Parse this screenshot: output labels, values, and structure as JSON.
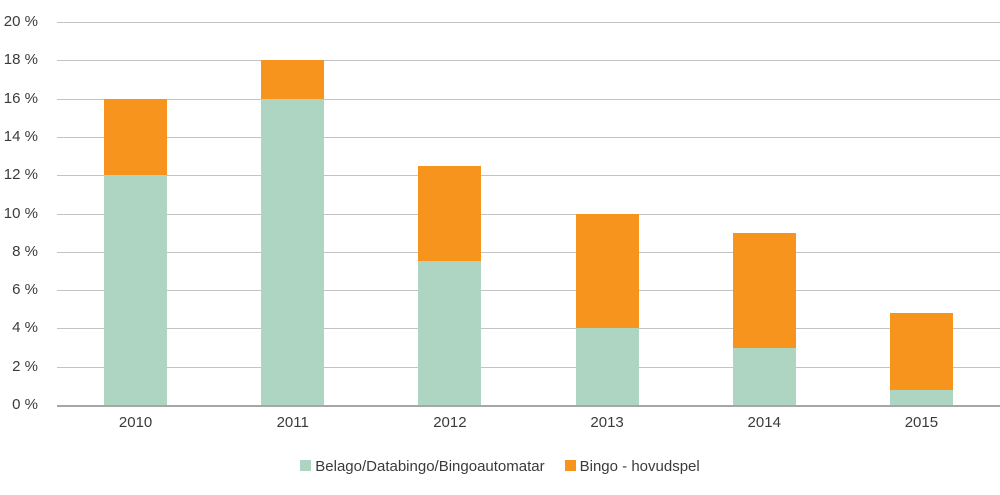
{
  "chart_data": {
    "type": "bar",
    "stacked": true,
    "categories": [
      "2010",
      "2011",
      "2012",
      "2013",
      "2014",
      "2015"
    ],
    "series": [
      {
        "name": "Belago/Databingo/Bingoautomatar",
        "color": "#add5c2",
        "values": [
          12,
          16,
          7.5,
          4,
          3,
          0.8
        ]
      },
      {
        "name": "Bingo - hovudspel",
        "color": "#f7941d",
        "values": [
          4,
          2,
          5,
          6,
          6,
          4
        ]
      }
    ],
    "totals": [
      16,
      18,
      12.5,
      10,
      9,
      4.8
    ],
    "title": "",
    "xlabel": "",
    "ylabel": "",
    "ylim": [
      0,
      20
    ],
    "ytick_step": 2,
    "ytick_suffix": " %",
    "grid": true,
    "legend_position": "bottom"
  },
  "colors": {
    "gridline": "#c3c3c3",
    "axis_baseline": "#a6a6a6",
    "text": "#3b3b3b",
    "background": "#ffffff"
  }
}
